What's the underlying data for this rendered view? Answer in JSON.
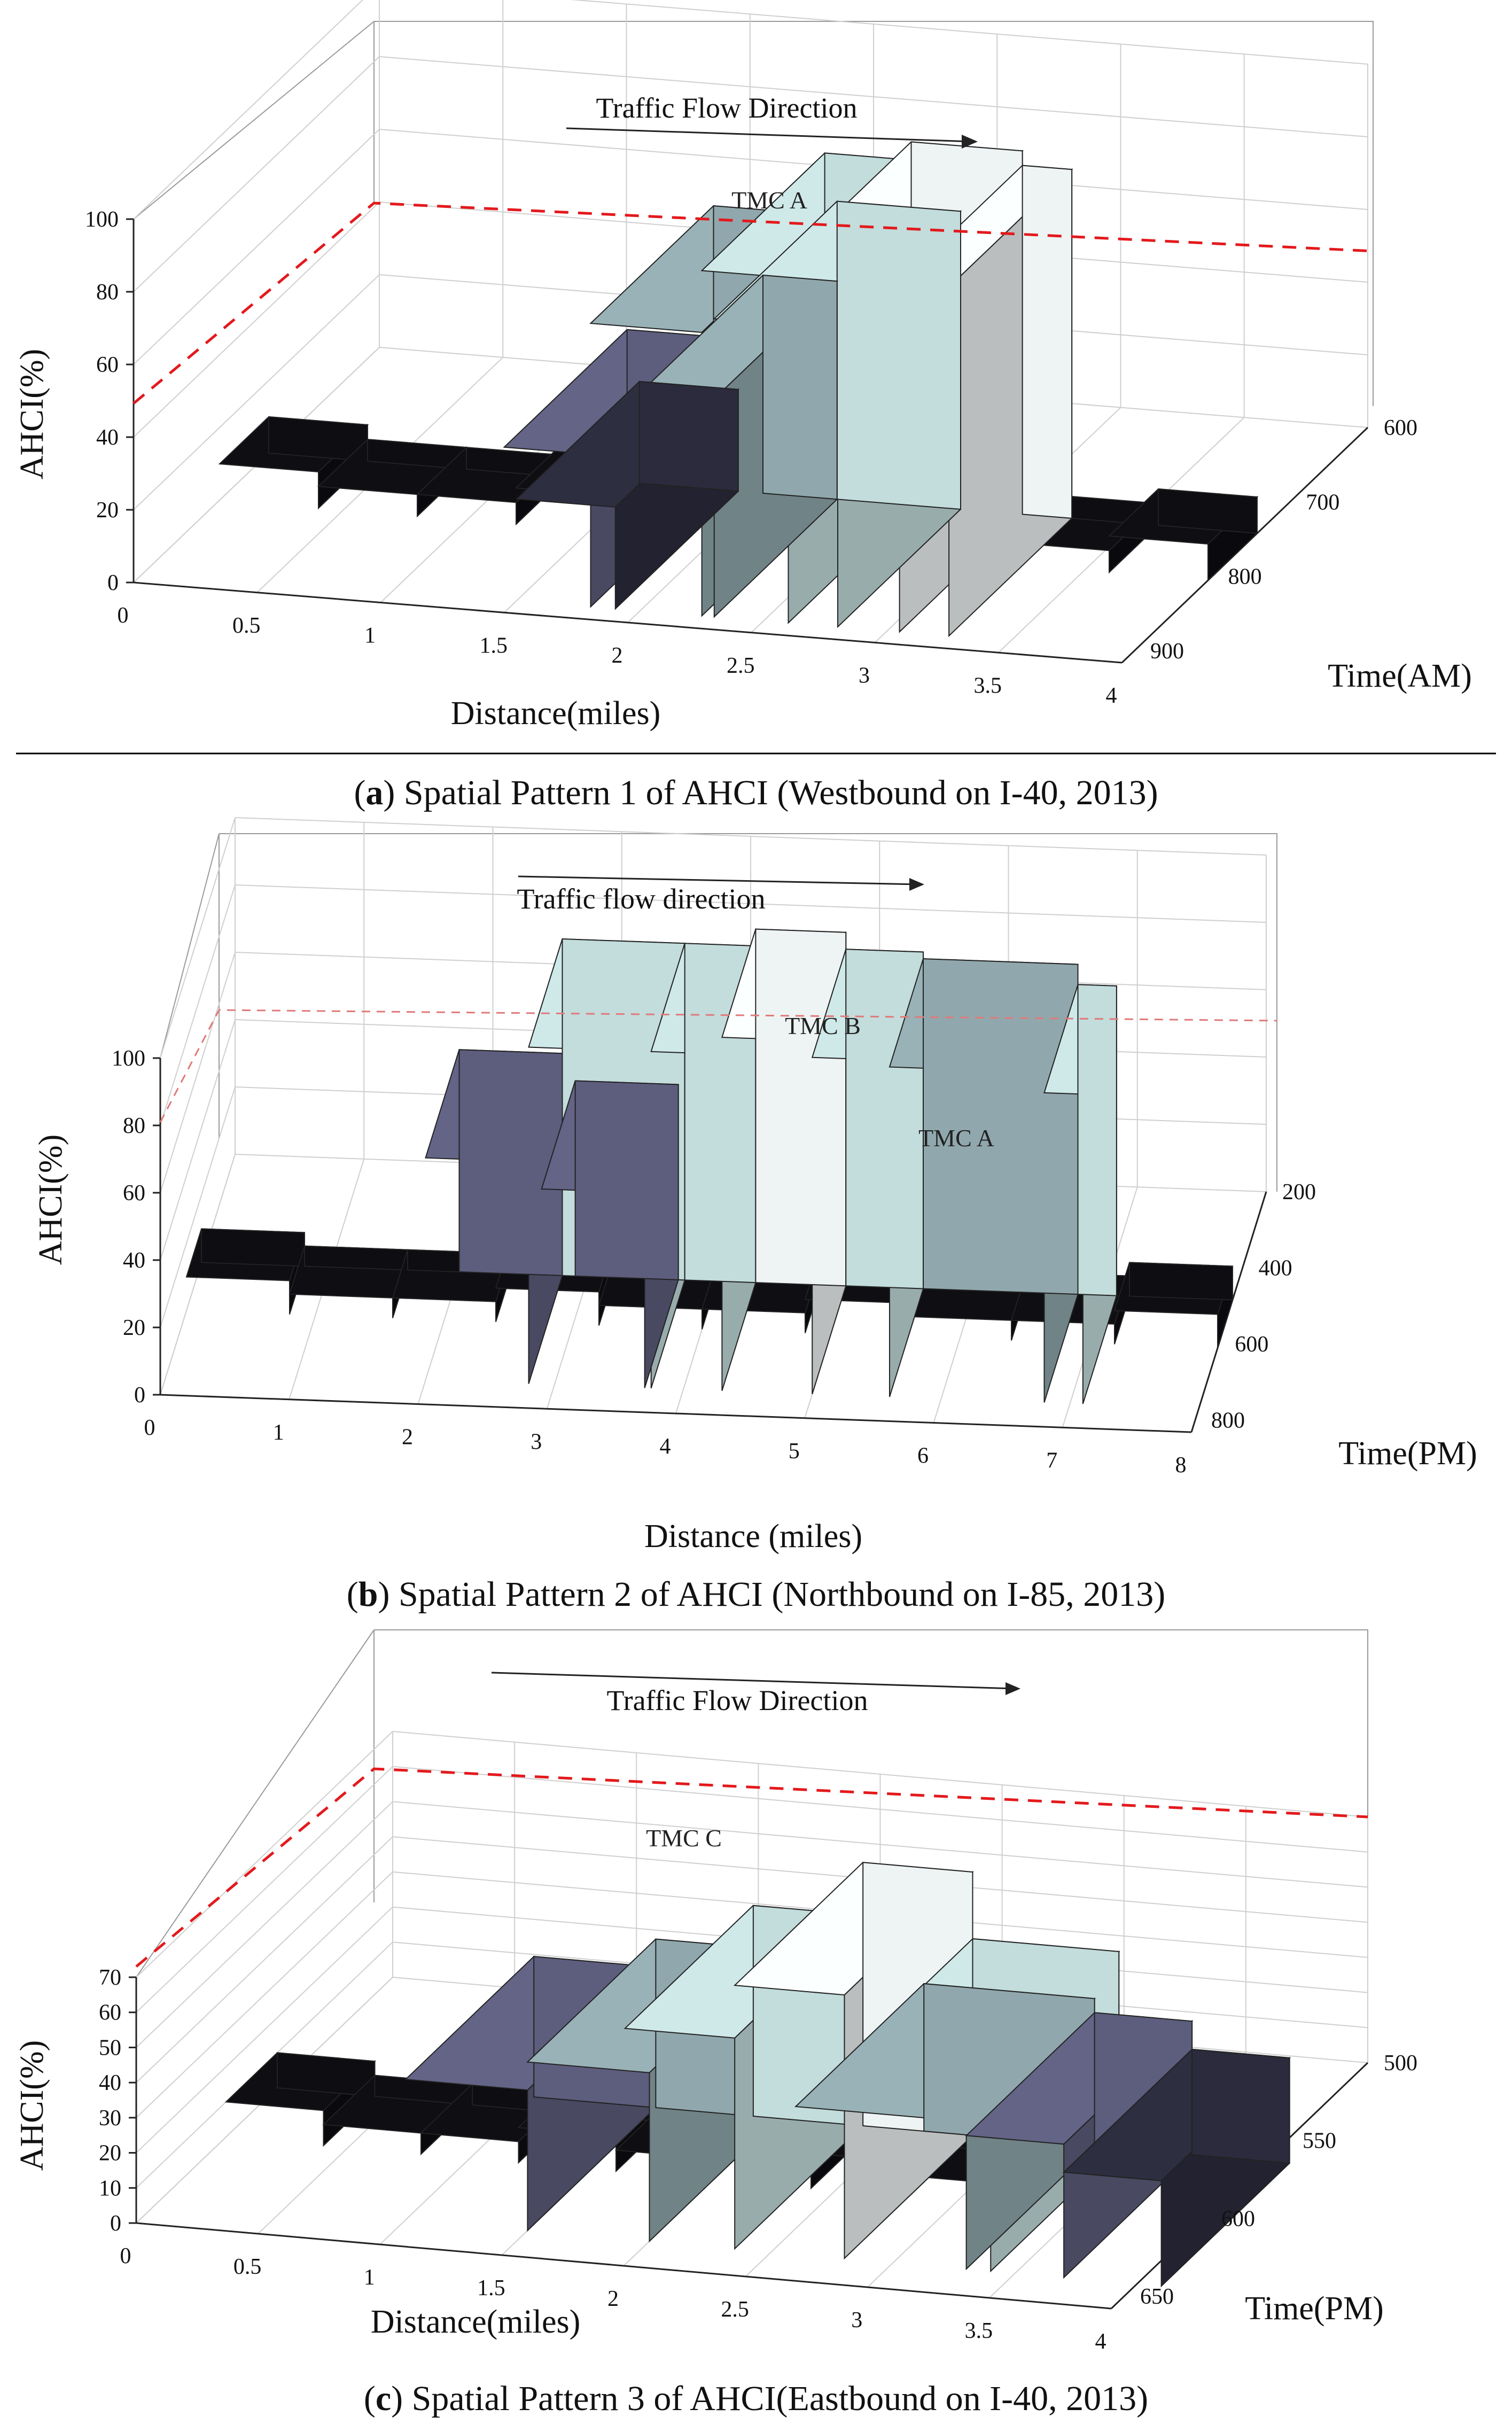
{
  "chart_data": [
    {
      "id": "a",
      "type": "bar3d",
      "annotation": "Traffic Flow Direction",
      "tmc_labels": [
        "TMC A"
      ],
      "zlabel": "AHCI(%)",
      "xlabel": "Distance(miles)",
      "ylabel": "Time(AM)",
      "z_ticks": [
        "0",
        "20",
        "40",
        "60",
        "80",
        "100"
      ],
      "x_ticks": [
        "0",
        "0.5",
        "1",
        "1.5",
        "2",
        "2.5",
        "3",
        "3.5",
        "4"
      ],
      "y_ticks": [
        "600",
        "700",
        "800",
        "900"
      ],
      "zlim": [
        0,
        100
      ],
      "threshold": 100,
      "bars": [
        {
          "x": 1.45,
          "w": 0.35,
          "h": 42,
          "c": 3
        },
        {
          "x": 1.8,
          "w": 0.45,
          "h": 78,
          "c": 2
        },
        {
          "x": 2.25,
          "w": 0.35,
          "h": 95,
          "c": 1
        },
        {
          "x": 2.6,
          "w": 0.45,
          "h": 100,
          "c": 0
        },
        {
          "x": 3.05,
          "w": 0.2,
          "h": 96,
          "c": 0
        },
        {
          "x": 2.3,
          "w": 0.5,
          "h": 82,
          "c": 1
        },
        {
          "x": 2.0,
          "w": 0.3,
          "h": 60,
          "c": 2
        },
        {
          "x": 1.5,
          "w": 0.4,
          "h": 28,
          "c": 4
        }
      ],
      "caption_bold": "a",
      "caption_text": "Spatial Pattern 1 of AHCI (Westbound on I-40, 2013)"
    },
    {
      "id": "b",
      "type": "bar3d",
      "annotation": "Traffic flow direction",
      "tmc_labels": [
        "TMC B",
        "TMC A"
      ],
      "zlabel": "AHCI(%)",
      "xlabel": "Distance (miles)",
      "ylabel": "Time(PM)",
      "z_ticks": [
        "0",
        "20",
        "40",
        "60",
        "80",
        "100"
      ],
      "x_ticks": [
        "0",
        "1",
        "2",
        "3",
        "4",
        "5",
        "6",
        "7",
        "8"
      ],
      "y_ticks": [
        "200",
        "400",
        "600",
        "800"
      ],
      "zlim": [
        0,
        100
      ],
      "threshold": 100,
      "bars": [
        {
          "x": 2.0,
          "w": 0.8,
          "h": 66,
          "c": 3
        },
        {
          "x": 2.8,
          "w": 0.95,
          "h": 100,
          "c": 1
        },
        {
          "x": 3.75,
          "w": 0.55,
          "h": 100,
          "c": 1
        },
        {
          "x": 4.3,
          "w": 0.7,
          "h": 105,
          "c": 0
        },
        {
          "x": 5.0,
          "w": 0.6,
          "h": 100,
          "c": 1
        },
        {
          "x": 5.6,
          "w": 1.2,
          "h": 98,
          "c": 2
        },
        {
          "x": 6.8,
          "w": 0.3,
          "h": 92,
          "c": 1
        },
        {
          "x": 2.9,
          "w": 0.8,
          "h": 58,
          "c": 3
        }
      ],
      "caption_bold": "b",
      "caption_text": "Spatial Pattern 2 of AHCI (Northbound on I-85, 2013)"
    },
    {
      "id": "c",
      "type": "bar3d",
      "annotation": "Traffic Flow Direction",
      "tmc_labels": [
        "TMC C"
      ],
      "zlabel": "AHCI(%)",
      "xlabel": "Distance(miles)",
      "ylabel": "Time(PM)",
      "z_ticks": [
        "0",
        "10",
        "20",
        "30",
        "40",
        "50",
        "60",
        "70"
      ],
      "x_ticks": [
        "0",
        "0.5",
        "1",
        "1.5",
        "2",
        "2.5",
        "3",
        "3.5",
        "4"
      ],
      "y_ticks": [
        "500",
        "550",
        "600",
        "650"
      ],
      "zlim": [
        0,
        70
      ],
      "threshold": 70,
      "bars": [
        {
          "x": 1.0,
          "w": 0.5,
          "h": 40,
          "c": 3
        },
        {
          "x": 1.5,
          "w": 0.5,
          "h": 48,
          "c": 2
        },
        {
          "x": 1.9,
          "w": 0.45,
          "h": 60,
          "c": 1
        },
        {
          "x": 2.35,
          "w": 0.45,
          "h": 75,
          "c": 0
        },
        {
          "x": 2.8,
          "w": 0.6,
          "h": 56,
          "c": 1
        },
        {
          "x": 2.6,
          "w": 0.7,
          "h": 42,
          "c": 2
        },
        {
          "x": 3.3,
          "w": 0.4,
          "h": 38,
          "c": 3
        },
        {
          "x": 3.7,
          "w": 0.4,
          "h": 30,
          "c": 4
        }
      ],
      "caption_bold": "c",
      "caption_text": "Spatial Pattern 3 of AHCI(Eastbound on I-40, 2013)"
    }
  ],
  "palette": [
    "#eef4f4",
    "#c3dcdc",
    "#90a8ad",
    "#5d5e7e",
    "#2b2b3d",
    "#0d0d12"
  ]
}
